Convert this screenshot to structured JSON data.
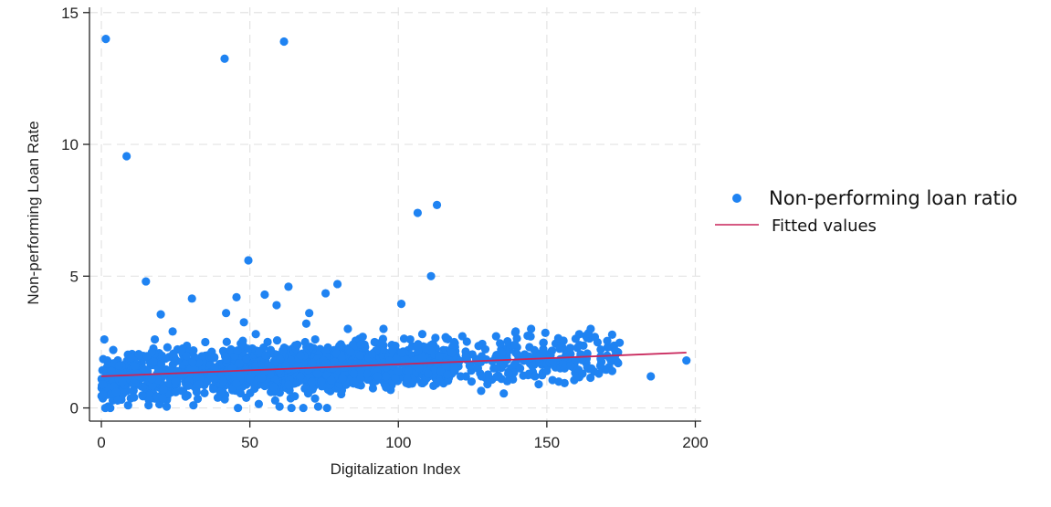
{
  "chart_data": {
    "type": "scatter",
    "xlabel": "Digitalization Index",
    "ylabel": "Non-performing Loan Rate",
    "xlim": [
      -4,
      202
    ],
    "ylim": [
      -0.5,
      15.2
    ],
    "xticks": [
      "0",
      "50",
      "100",
      "150",
      "200"
    ],
    "yticks": [
      "0",
      "5",
      "10",
      "15"
    ],
    "grid": true,
    "legend_position": "right",
    "colors": {
      "points": "#1f83f2",
      "fit": "#c8245a"
    },
    "series": [
      {
        "name": "Non-performing loan ratio",
        "kind": "scatter",
        "points": [
          [
            1.5,
            14.0
          ],
          [
            61.5,
            13.9
          ],
          [
            41.5,
            13.25
          ],
          [
            8.5,
            9.55
          ],
          [
            106.5,
            7.4
          ],
          [
            113,
            7.7
          ],
          [
            49.5,
            5.6
          ],
          [
            111,
            5.0
          ],
          [
            15,
            4.8
          ],
          [
            63,
            4.6
          ],
          [
            79.5,
            4.7
          ],
          [
            101,
            3.95
          ],
          [
            30.5,
            4.15
          ],
          [
            45.5,
            4.2
          ],
          [
            55,
            4.3
          ],
          [
            75.5,
            4.35
          ],
          [
            70,
            3.6
          ],
          [
            59,
            3.9
          ],
          [
            42,
            3.6
          ],
          [
            48,
            3.25
          ],
          [
            139.5,
            2.9
          ],
          [
            149.5,
            2.85
          ],
          [
            127,
            2.35
          ],
          [
            118,
            2.1
          ],
          [
            197,
            1.8
          ],
          [
            185,
            1.2
          ],
          [
            174,
            1.7
          ],
          [
            165,
            1.5
          ],
          [
            160,
            1.2
          ],
          [
            170,
            1.45
          ],
          [
            135.5,
            0.55
          ],
          [
            130,
            0.9
          ],
          [
            156,
            1.5
          ],
          [
            152,
            1.75
          ],
          [
            144,
            1.3
          ],
          [
            121,
            1.2
          ],
          [
            1,
            2.6
          ],
          [
            4,
            2.2
          ],
          [
            2,
            1.8
          ],
          [
            6,
            1.6
          ],
          [
            10,
            1.9
          ],
          [
            12,
            1.3
          ],
          [
            18,
            2.6
          ],
          [
            20,
            3.55
          ],
          [
            24,
            2.9
          ],
          [
            27,
            2.2
          ],
          [
            35,
            2.5
          ],
          [
            38,
            1.9
          ],
          [
            52,
            2.8
          ],
          [
            57,
            2.2
          ],
          [
            66,
            2.4
          ],
          [
            69,
            3.2
          ],
          [
            72,
            2.6
          ],
          [
            83,
            3.0
          ],
          [
            88,
            2.7
          ],
          [
            92,
            2.5
          ],
          [
            95,
            3.0
          ],
          [
            98,
            2.2
          ],
          [
            104,
            2.6
          ],
          [
            108,
            1.9
          ],
          [
            116,
            1.6
          ],
          [
            3,
            0.0
          ],
          [
            9,
            0.1
          ],
          [
            16,
            0.3
          ],
          [
            22,
            0.05
          ],
          [
            31,
            0.1
          ],
          [
            46,
            0.0
          ],
          [
            53,
            0.15
          ],
          [
            60,
            0.05
          ],
          [
            64,
            0.0
          ],
          [
            68,
            0.0
          ],
          [
            73,
            0.05
          ],
          [
            76,
            0.0
          ],
          [
            0.5,
            0.5
          ],
          [
            0.5,
            0.9
          ],
          [
            2,
            1.2
          ],
          [
            5,
            0.6
          ],
          [
            7,
            1.0
          ],
          [
            11,
            0.4
          ],
          [
            14,
            0.8
          ],
          [
            17,
            1.1
          ],
          [
            21,
            0.7
          ],
          [
            25,
            1.0
          ],
          [
            28,
            1.3
          ],
          [
            33,
            0.9
          ],
          [
            37,
            1.2
          ],
          [
            40,
            0.6
          ],
          [
            44,
            1.5
          ],
          [
            50,
            1.1
          ],
          [
            55,
            1.4
          ],
          [
            58,
            0.8
          ],
          [
            62,
            1.6
          ],
          [
            67,
            1.2
          ],
          [
            71,
            1.7
          ],
          [
            74,
            1.0
          ],
          [
            78,
            1.5
          ],
          [
            81,
            1.9
          ],
          [
            85,
            1.3
          ],
          [
            89,
            1.6
          ],
          [
            93,
            1.2
          ],
          [
            97,
            1.8
          ],
          [
            100,
            1.4
          ],
          [
            103,
            1.1
          ],
          [
            107,
            1.5
          ],
          [
            110,
            1.3
          ],
          [
            114,
            1.0
          ],
          [
            119,
            1.4
          ],
          [
            124,
            1.6
          ],
          [
            128,
            1.2
          ],
          [
            133,
            1.5
          ],
          [
            137,
            1.3
          ],
          [
            141,
            1.5
          ],
          [
            146,
            1.2
          ],
          [
            150,
            1.4
          ],
          [
            154,
            1.0
          ],
          [
            158,
            1.6
          ],
          [
            162,
            1.3
          ],
          [
            168,
            1.6
          ],
          [
            172,
            1.4
          ]
        ]
      },
      {
        "name": "Fitted values",
        "kind": "line",
        "x": [
          0,
          197
        ],
        "y": [
          1.2,
          2.1
        ]
      }
    ]
  }
}
